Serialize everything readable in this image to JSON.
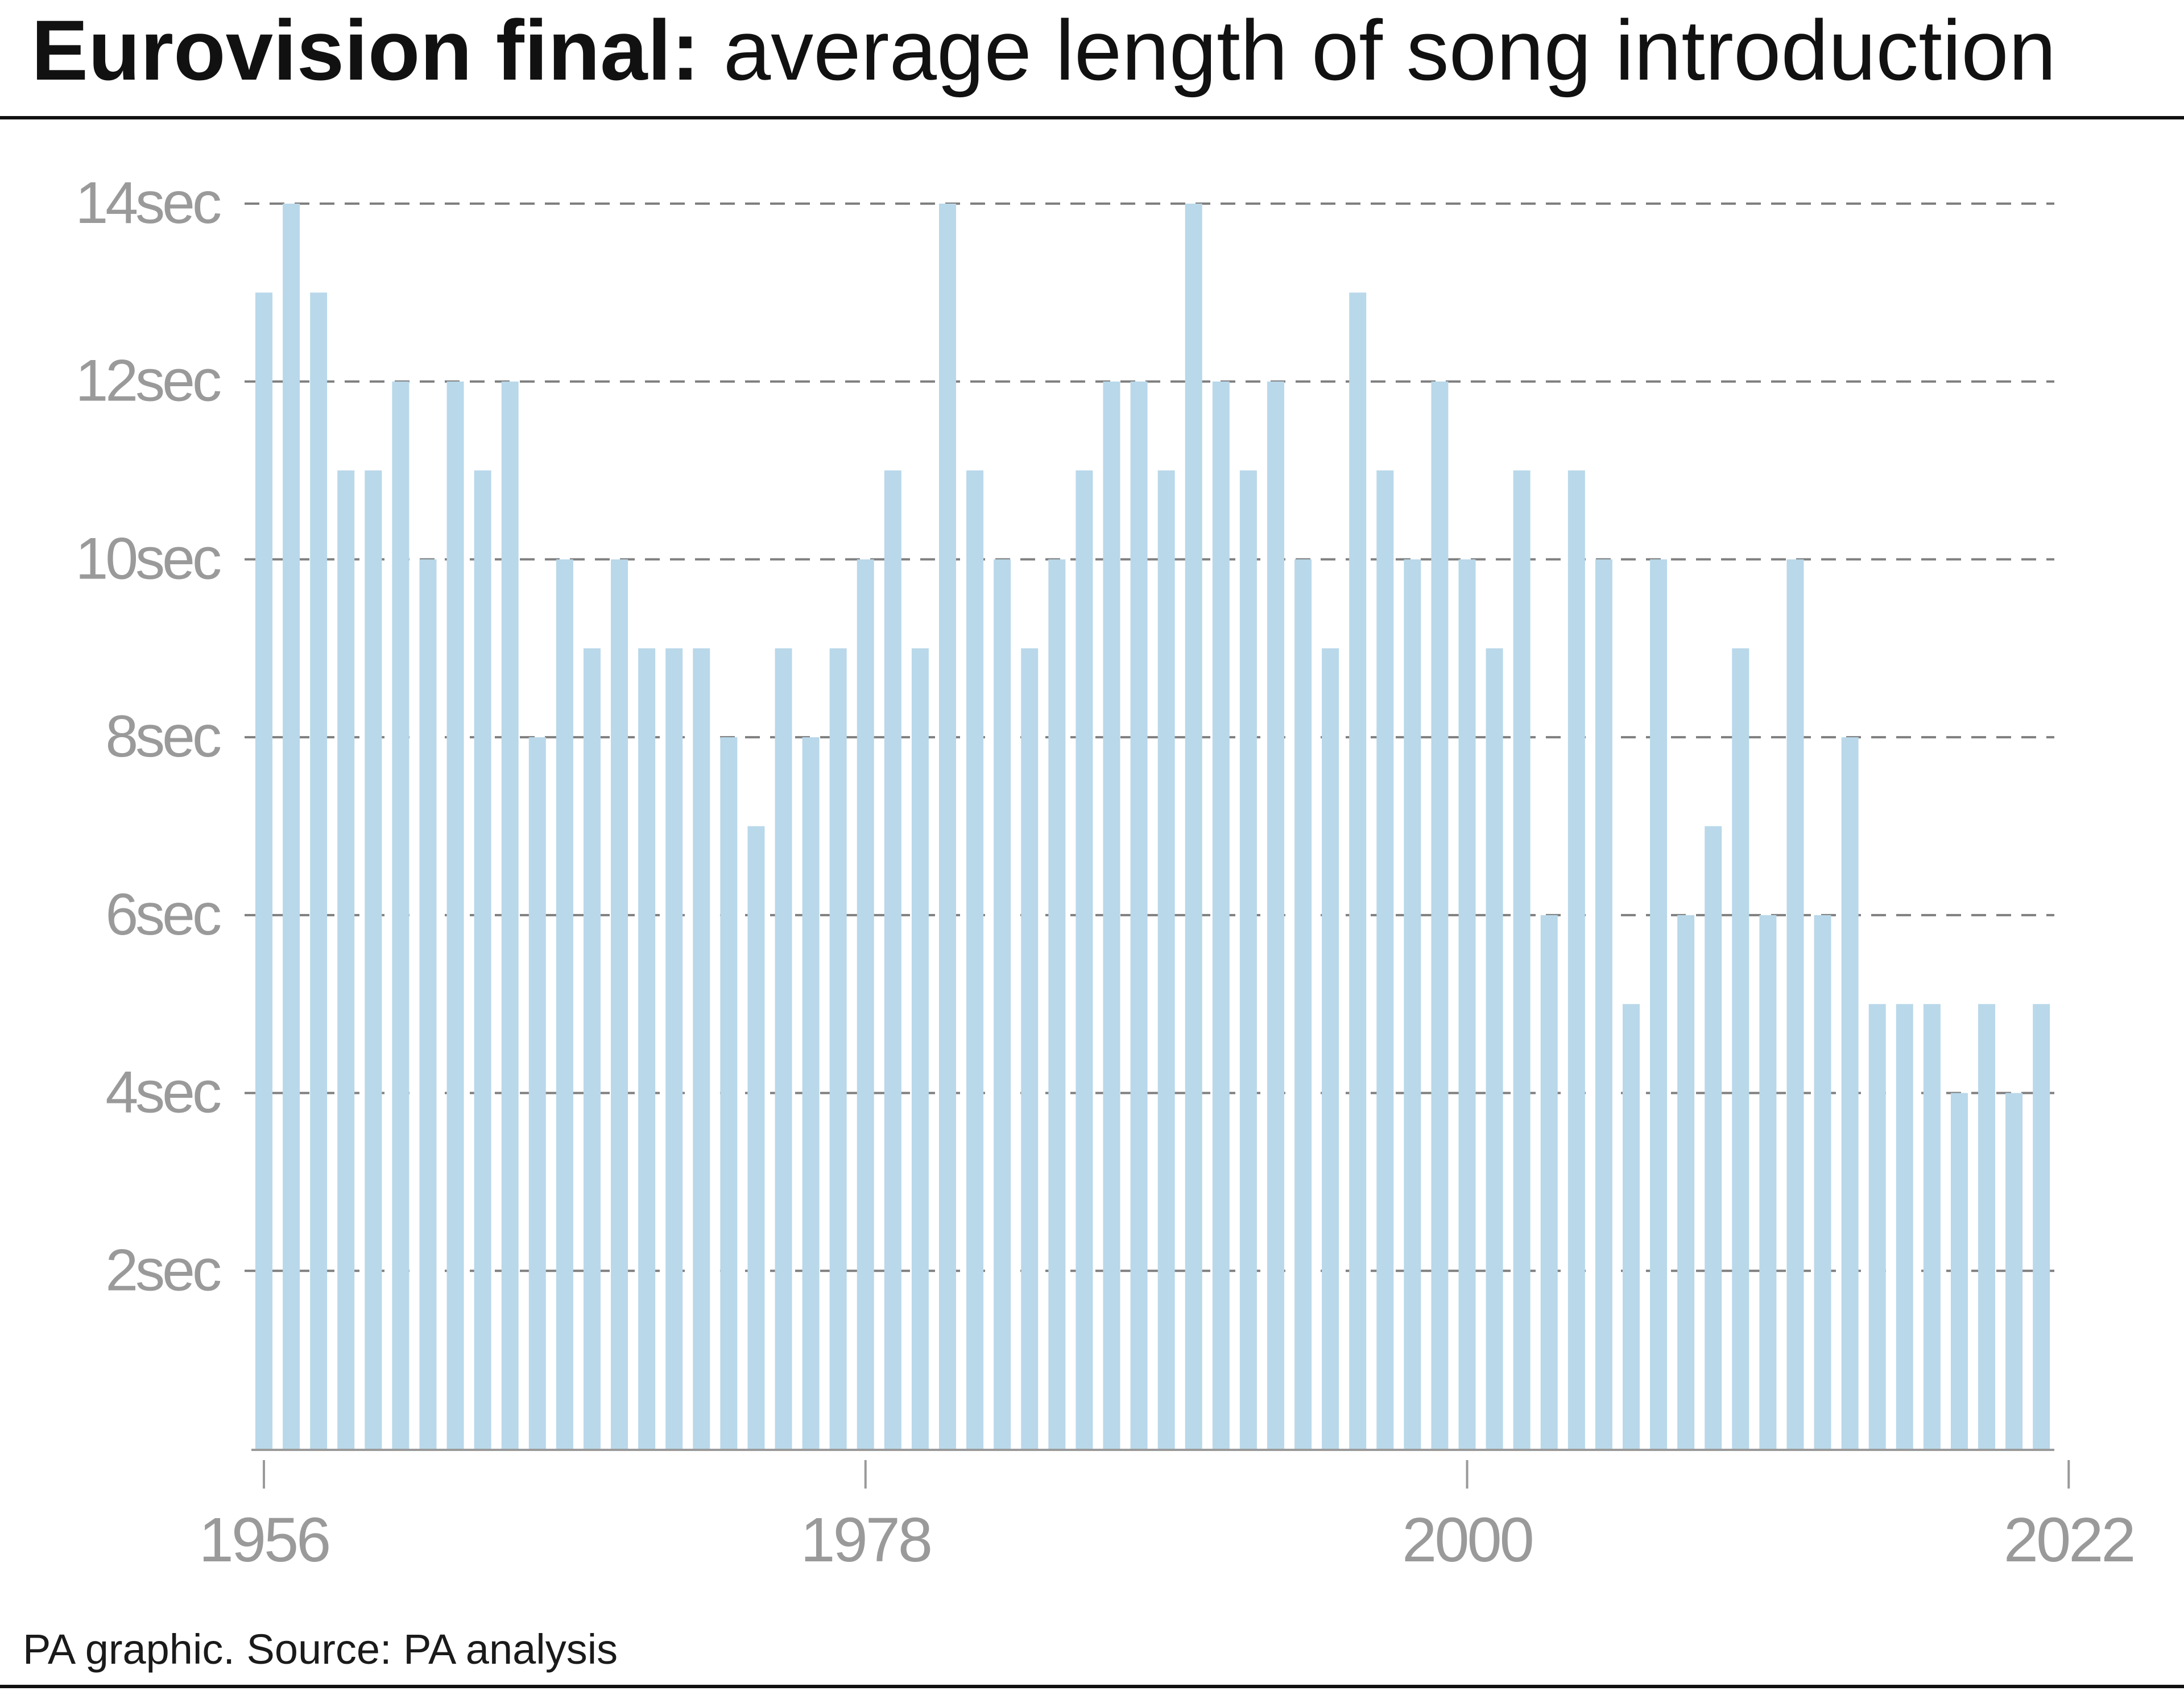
{
  "title": {
    "bold": "Eurovision final:",
    "regular": " average length of song introduction"
  },
  "source": "PA graphic. Source: PA analysis",
  "colors": {
    "bar": "#b9d8ea",
    "grid": "#7f7f7f",
    "tick_text": "#9a9a9a",
    "title": "#111111",
    "rule": "#111111",
    "axis": "#9a9a9a"
  },
  "chart_data": {
    "type": "bar",
    "title": "Eurovision final: average length of song introduction",
    "xlabel": "",
    "ylabel": "",
    "ylim": [
      0,
      14
    ],
    "grid": true,
    "y_ticks": [
      {
        "value": 2,
        "label": "2sec"
      },
      {
        "value": 4,
        "label": "4sec"
      },
      {
        "value": 6,
        "label": "6sec"
      },
      {
        "value": 8,
        "label": "8sec"
      },
      {
        "value": 10,
        "label": "10sec"
      },
      {
        "value": 12,
        "label": "12sec"
      },
      {
        "value": 14,
        "label": "14sec"
      }
    ],
    "x_ticks": [
      {
        "year": 1956,
        "label": "1956"
      },
      {
        "year": 1978,
        "label": "1978"
      },
      {
        "year": 2000,
        "label": "2000"
      },
      {
        "year": 2022,
        "label": "2022"
      }
    ],
    "categories": [
      1956,
      1957,
      1958,
      1959,
      1960,
      1961,
      1962,
      1963,
      1964,
      1965,
      1966,
      1967,
      1968,
      1969,
      1970,
      1971,
      1972,
      1973,
      1974,
      1975,
      1976,
      1977,
      1978,
      1979,
      1980,
      1981,
      1982,
      1983,
      1984,
      1985,
      1986,
      1987,
      1988,
      1989,
      1990,
      1991,
      1992,
      1993,
      1994,
      1995,
      1996,
      1997,
      1998,
      1999,
      2000,
      2001,
      2002,
      2003,
      2004,
      2005,
      2006,
      2007,
      2008,
      2009,
      2010,
      2011,
      2012,
      2013,
      2014,
      2015,
      2016,
      2017,
      2018,
      2019,
      2020,
      2021,
      2022
    ],
    "values": [
      13,
      14,
      13,
      11,
      11,
      12,
      10,
      12,
      11,
      12,
      8,
      10,
      9,
      10,
      9,
      9,
      9,
      8,
      7,
      9,
      8,
      9,
      10,
      11,
      9,
      14,
      11,
      10,
      9,
      10,
      11,
      12,
      12,
      11,
      14,
      12,
      11,
      12,
      10,
      9,
      13,
      11,
      10,
      12,
      10,
      9,
      11,
      6,
      11,
      10,
      5,
      10,
      6,
      7,
      9,
      6,
      10,
      6,
      8,
      5,
      5,
      5,
      4,
      5,
      4,
      5,
      null
    ],
    "unit": "sec"
  }
}
